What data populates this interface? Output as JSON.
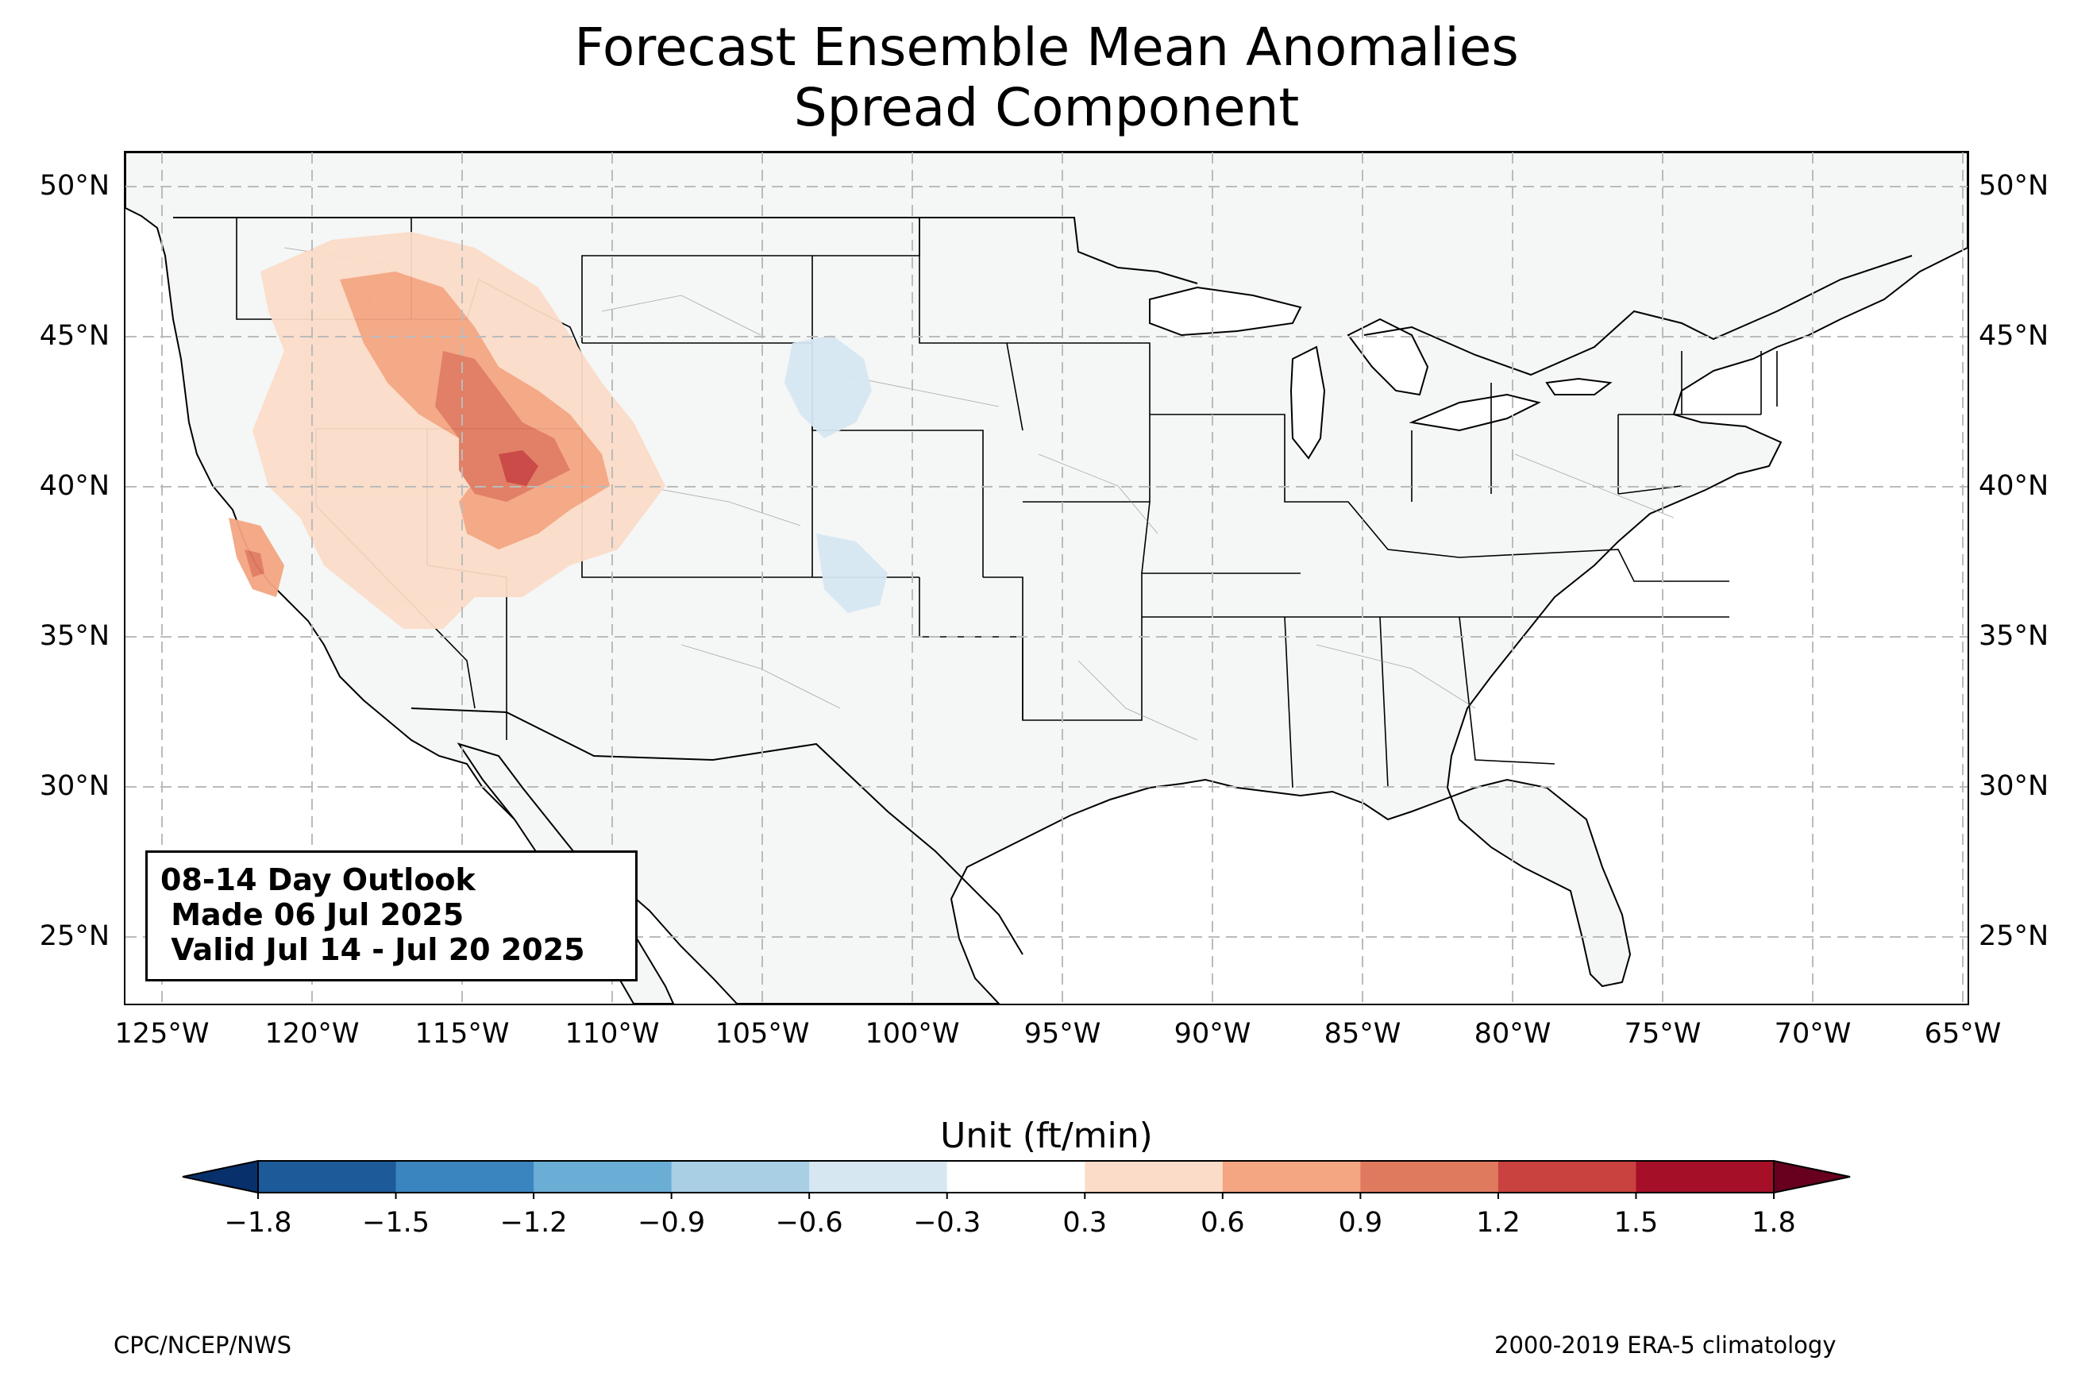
{
  "title": {
    "line1": "Forecast Ensemble Mean Anomalies",
    "line2": "Spread Component"
  },
  "map": {
    "lon_ticks": [
      "125°W",
      "120°W",
      "115°W",
      "110°W",
      "105°W",
      "100°W",
      "95°W",
      "90°W",
      "85°W",
      "80°W",
      "75°W",
      "70°W",
      "65°W"
    ],
    "lat_ticks": [
      "50°N",
      "45°N",
      "40°N",
      "35°N",
      "30°N",
      "25°N"
    ],
    "land_color": "#f5f6f6",
    "grid": "dashed"
  },
  "info_box": {
    "line1": "08-14 Day Outlook",
    "line2": " Made 06 Jul 2025",
    "line3": " Valid Jul 14 - Jul 20 2025"
  },
  "colorbar": {
    "title": "Unit (ft/min)",
    "ticks": [
      "−1.8",
      "−1.5",
      "−1.2",
      "−0.9",
      "−0.6",
      "−0.3",
      "0.3",
      "0.6",
      "0.9",
      "1.2",
      "1.5",
      "1.8"
    ],
    "colors": [
      "#08306b",
      "#1c5a99",
      "#3a85bf",
      "#6aaed6",
      "#a9cfe5",
      "#d6e7f1",
      "#ffffff",
      "#fbdcc8",
      "#f4a582",
      "#e07a5f",
      "#c9423f",
      "#a50f27",
      "#67001f"
    ]
  },
  "footer": {
    "left": "CPC/NCEP/NWS",
    "right": "2000-2019 ERA-5 climatology"
  }
}
